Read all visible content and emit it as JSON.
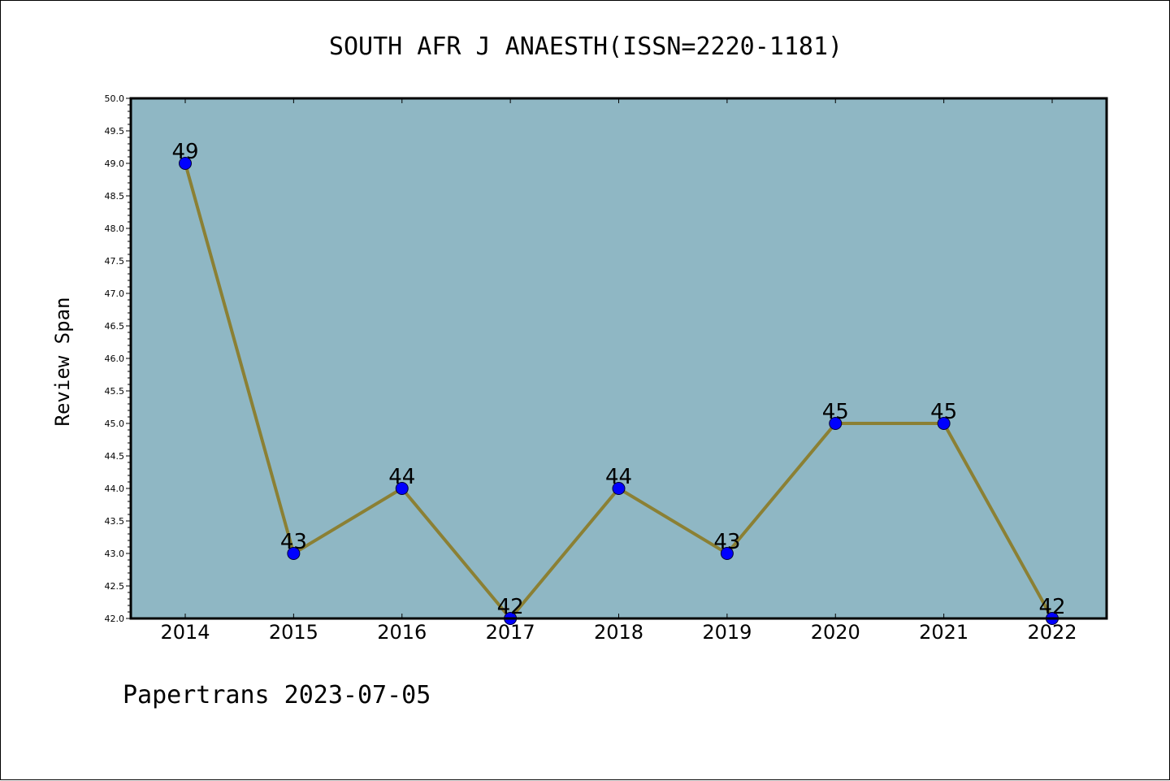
{
  "chart_data": {
    "type": "line",
    "title": "SOUTH AFR J ANAESTH(ISSN=2220-1181)",
    "xlabel": "",
    "ylabel": "Review Span",
    "categories": [
      "2014",
      "2015",
      "2016",
      "2017",
      "2018",
      "2019",
      "2020",
      "2021",
      "2022"
    ],
    "series": [
      {
        "values": [
          49,
          43,
          44,
          42,
          44,
          43,
          45,
          45,
          42
        ]
      }
    ],
    "ylim": [
      42.0,
      50.0
    ],
    "y_tick_labels": [
      "42.0",
      "42.5",
      "43.0",
      "43.5",
      "44.0",
      "44.5",
      "45.0",
      "45.5",
      "46.0",
      "46.5",
      "47.0",
      "47.5",
      "48.0",
      "48.5",
      "49.0",
      "49.5",
      "50.0"
    ],
    "data_labels": [
      "49",
      "43",
      "44",
      "42",
      "44",
      "43",
      "45",
      "45",
      "42"
    ],
    "grid": false,
    "legend": "none"
  },
  "footer": {
    "text": "Papertrans 2023-07-05"
  },
  "colors": {
    "plot_background": "#8fb7c4",
    "line": "#8b8034",
    "marker": "#0000ff",
    "axis": "#000000"
  }
}
